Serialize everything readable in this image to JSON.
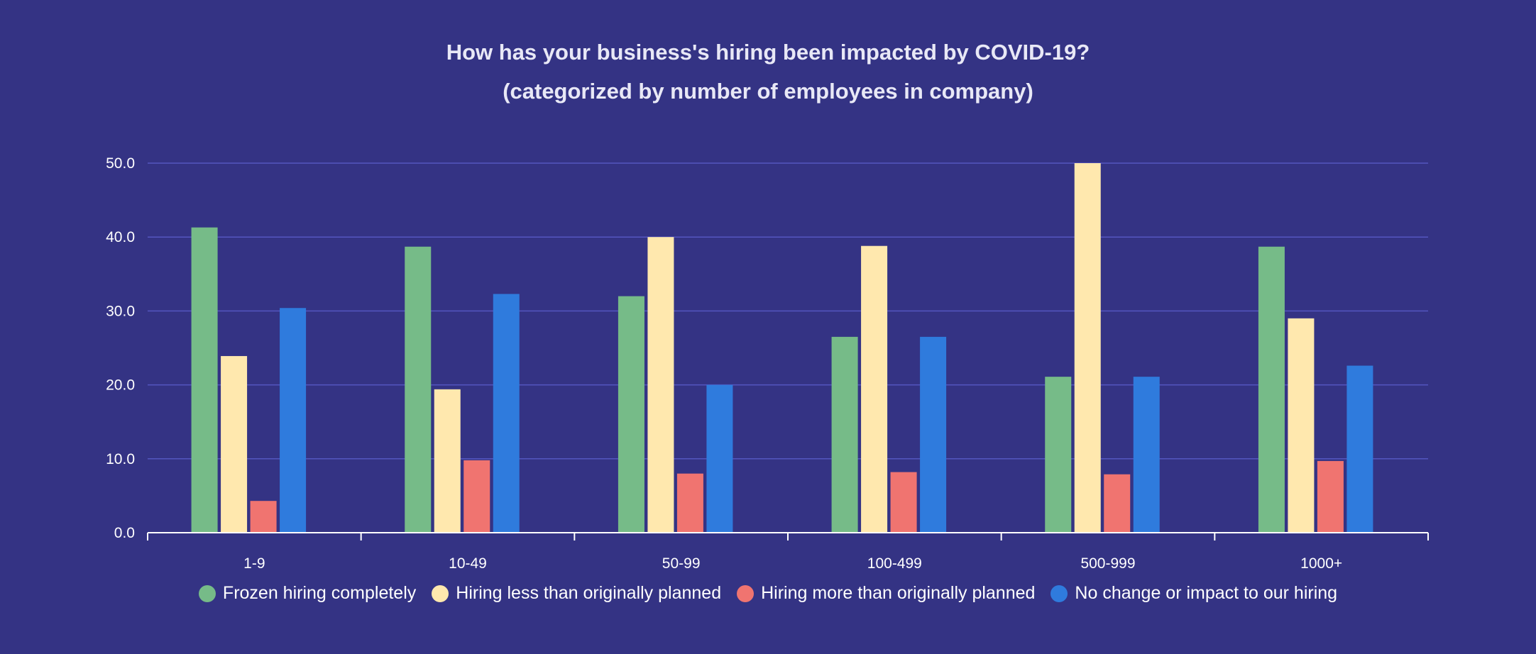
{
  "chart_data": {
    "type": "bar",
    "title": "How has your business's hiring been impacted by COVID-19?",
    "subtitle": "(categorized by number of employees in company)",
    "xlabel": "",
    "ylabel": "",
    "ylim": [
      0,
      50
    ],
    "yticks": [
      "0.0",
      "10.0",
      "20.0",
      "30.0",
      "40.0",
      "50.0"
    ],
    "grid": true,
    "legend_position": "bottom",
    "categories": [
      "1-9",
      "10-49",
      "50-99",
      "100-499",
      "500-999",
      "1000+"
    ],
    "series": [
      {
        "name": "Frozen hiring completely",
        "color": "#76bb88",
        "values": [
          41.3,
          38.7,
          32.0,
          26.5,
          21.1,
          38.7
        ]
      },
      {
        "name": "Hiring less than originally planned",
        "color": "#ffe8ae",
        "values": [
          23.9,
          19.4,
          40.0,
          38.8,
          50.0,
          29.0
        ]
      },
      {
        "name": "Hiring more than originally planned",
        "color": "#f07470",
        "values": [
          4.3,
          9.8,
          8.0,
          8.2,
          7.9,
          9.7
        ]
      },
      {
        "name": "No change or impact to our hiring",
        "color": "#2f7bdd",
        "values": [
          30.4,
          32.3,
          20.0,
          26.5,
          21.1,
          22.6
        ]
      }
    ]
  }
}
